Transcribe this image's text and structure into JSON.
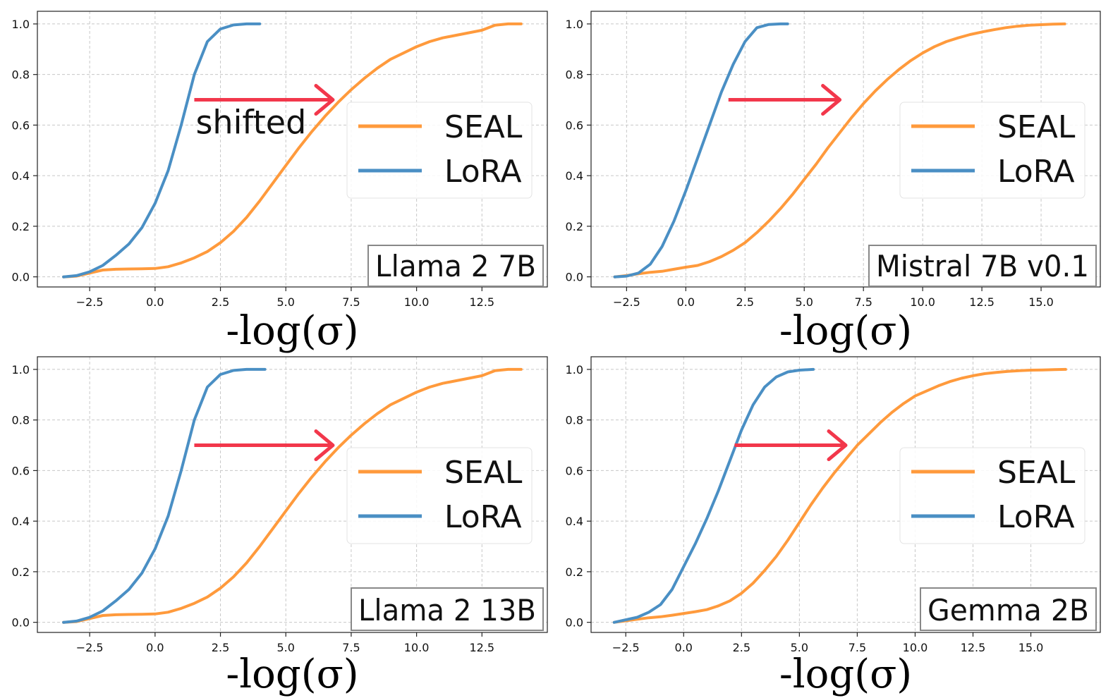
{
  "figure": {
    "colors": {
      "SEAL": "#ff9a3c",
      "LoRA": "#4a8fc4",
      "arrow": "#f2374b",
      "grid": "#c8c8c8"
    }
  },
  "chart_data": [
    {
      "type": "line",
      "model": "Llama 2 7B",
      "xlabel": "-log(σ)",
      "ylabel": "",
      "xlim": [
        -4.5,
        15.0
      ],
      "ylim": [
        -0.04,
        1.05
      ],
      "xticks": [
        -2.5,
        0.0,
        2.5,
        5.0,
        7.5,
        10.0,
        12.5
      ],
      "xtick_labels": [
        "−2.5",
        "0.0",
        "2.5",
        "5.0",
        "7.5",
        "10.0",
        "12.5"
      ],
      "yticks": [
        0.0,
        0.2,
        0.4,
        0.6,
        0.8,
        1.0
      ],
      "ytick_labels": [
        "0.0",
        "0.2",
        "0.4",
        "0.6",
        "0.8",
        "1.0"
      ],
      "grid": true,
      "legend": {
        "entries": [
          "SEAL",
          "LoRA"
        ],
        "position": "center-right"
      },
      "annotation": {
        "text": "shifted",
        "arrow_from": [
          1.5,
          0.7
        ],
        "arrow_to": [
          6.8,
          0.7
        ]
      },
      "series": [
        {
          "name": "SEAL",
          "x": [
            -3.5,
            -3.0,
            -2.5,
            -2.0,
            -1.5,
            -1.0,
            -0.5,
            0.0,
            0.5,
            1.0,
            1.5,
            2.0,
            2.5,
            3.0,
            3.5,
            4.0,
            4.5,
            5.0,
            5.5,
            6.0,
            6.5,
            7.0,
            7.5,
            8.0,
            8.5,
            9.0,
            9.5,
            10.0,
            10.5,
            11.0,
            11.5,
            12.0,
            12.5,
            13.0,
            13.5,
            14.0
          ],
          "y": [
            0.0,
            0.003,
            0.015,
            0.027,
            0.03,
            0.031,
            0.032,
            0.033,
            0.04,
            0.055,
            0.075,
            0.1,
            0.135,
            0.18,
            0.235,
            0.3,
            0.37,
            0.44,
            0.51,
            0.575,
            0.635,
            0.69,
            0.74,
            0.785,
            0.825,
            0.86,
            0.885,
            0.91,
            0.93,
            0.945,
            0.955,
            0.965,
            0.975,
            0.995,
            1.0,
            1.0
          ]
        },
        {
          "name": "LoRA",
          "x": [
            -3.5,
            -3.0,
            -2.5,
            -2.0,
            -1.5,
            -1.0,
            -0.5,
            0.0,
            0.5,
            1.0,
            1.5,
            2.0,
            2.5,
            3.0,
            3.5,
            4.0
          ],
          "y": [
            0.0,
            0.005,
            0.02,
            0.045,
            0.085,
            0.13,
            0.195,
            0.29,
            0.42,
            0.6,
            0.8,
            0.93,
            0.98,
            0.996,
            1.0,
            1.0
          ]
        }
      ]
    },
    {
      "type": "line",
      "model": "Mistral 7B v0.1",
      "xlabel": "-log(σ)",
      "ylabel": "",
      "xlim": [
        -4.0,
        17.5
      ],
      "ylim": [
        -0.04,
        1.05
      ],
      "xticks": [
        -2.5,
        0.0,
        2.5,
        5.0,
        7.5,
        10.0,
        12.5,
        15.0
      ],
      "xtick_labels": [
        "−2.5",
        "0.0",
        "2.5",
        "5.0",
        "7.5",
        "10.0",
        "12.5",
        "15.0"
      ],
      "yticks": [
        0.0,
        0.2,
        0.4,
        0.6,
        0.8,
        1.0
      ],
      "ytick_labels": [
        "0.0",
        "0.2",
        "0.4",
        "0.6",
        "0.8",
        "1.0"
      ],
      "grid": true,
      "legend": {
        "entries": [
          "SEAL",
          "LoRA"
        ],
        "position": "center-right"
      },
      "arrow": {
        "from": [
          1.8,
          0.7
        ],
        "to": [
          6.5,
          0.7
        ]
      },
      "series": [
        {
          "name": "SEAL",
          "x": [
            -3.0,
            -2.5,
            -2.0,
            -1.5,
            -1.0,
            -0.5,
            0.0,
            0.5,
            1.0,
            1.5,
            2.0,
            2.5,
            3.0,
            3.5,
            4.0,
            4.5,
            5.0,
            5.5,
            6.0,
            6.5,
            7.0,
            7.5,
            8.0,
            8.5,
            9.0,
            9.5,
            10.0,
            10.5,
            11.0,
            11.5,
            12.0,
            12.5,
            13.0,
            13.5,
            14.0,
            14.5,
            15.0,
            15.5,
            16.0
          ],
          "y": [
            0.0,
            0.005,
            0.012,
            0.018,
            0.022,
            0.03,
            0.038,
            0.045,
            0.06,
            0.08,
            0.105,
            0.135,
            0.175,
            0.22,
            0.27,
            0.325,
            0.385,
            0.445,
            0.51,
            0.57,
            0.63,
            0.685,
            0.735,
            0.78,
            0.82,
            0.855,
            0.885,
            0.91,
            0.93,
            0.945,
            0.958,
            0.968,
            0.977,
            0.985,
            0.991,
            0.995,
            0.997,
            0.999,
            1.0
          ]
        },
        {
          "name": "LoRA",
          "x": [
            -3.0,
            -2.5,
            -2.0,
            -1.5,
            -1.0,
            -0.5,
            0.0,
            0.5,
            1.0,
            1.5,
            2.0,
            2.5,
            3.0,
            3.5,
            4.0,
            4.3
          ],
          "y": [
            0.0,
            0.003,
            0.015,
            0.05,
            0.12,
            0.22,
            0.34,
            0.47,
            0.6,
            0.73,
            0.84,
            0.93,
            0.985,
            0.998,
            1.0,
            1.0
          ]
        }
      ]
    },
    {
      "type": "line",
      "model": "Llama 2 13B",
      "xlabel": "-log(σ)",
      "ylabel": "",
      "xlim": [
        -4.5,
        15.0
      ],
      "ylim": [
        -0.04,
        1.05
      ],
      "xticks": [
        -2.5,
        0.0,
        2.5,
        5.0,
        7.5,
        10.0,
        12.5
      ],
      "xtick_labels": [
        "−2.5",
        "0.0",
        "2.5",
        "5.0",
        "7.5",
        "10.0",
        "12.5"
      ],
      "yticks": [
        0.0,
        0.2,
        0.4,
        0.6,
        0.8,
        1.0
      ],
      "ytick_labels": [
        "0.0",
        "0.2",
        "0.4",
        "0.6",
        "0.8",
        "1.0"
      ],
      "grid": true,
      "legend": {
        "entries": [
          "SEAL",
          "LoRA"
        ],
        "position": "center-right"
      },
      "arrow": {
        "from": [
          1.5,
          0.7
        ],
        "to": [
          6.8,
          0.7
        ]
      },
      "series": [
        {
          "name": "SEAL",
          "x": [
            -3.5,
            -3.0,
            -2.5,
            -2.0,
            -1.5,
            -1.0,
            -0.5,
            0.0,
            0.5,
            1.0,
            1.5,
            2.0,
            2.5,
            3.0,
            3.5,
            4.0,
            4.5,
            5.0,
            5.5,
            6.0,
            6.5,
            7.0,
            7.5,
            8.0,
            8.5,
            9.0,
            9.5,
            10.0,
            10.5,
            11.0,
            11.5,
            12.0,
            12.5,
            13.0,
            13.5,
            14.0
          ],
          "y": [
            0.0,
            0.003,
            0.015,
            0.027,
            0.03,
            0.031,
            0.032,
            0.033,
            0.04,
            0.055,
            0.075,
            0.1,
            0.135,
            0.18,
            0.235,
            0.3,
            0.37,
            0.44,
            0.51,
            0.575,
            0.635,
            0.69,
            0.74,
            0.785,
            0.825,
            0.86,
            0.885,
            0.91,
            0.93,
            0.945,
            0.955,
            0.965,
            0.975,
            0.995,
            1.0,
            1.0
          ]
        },
        {
          "name": "LoRA",
          "x": [
            -3.5,
            -3.0,
            -2.5,
            -2.0,
            -1.5,
            -1.0,
            -0.5,
            0.0,
            0.5,
            1.0,
            1.5,
            2.0,
            2.5,
            3.0,
            3.5,
            4.2
          ],
          "y": [
            0.0,
            0.005,
            0.02,
            0.045,
            0.085,
            0.13,
            0.195,
            0.29,
            0.42,
            0.6,
            0.8,
            0.93,
            0.98,
            0.996,
            1.0,
            1.0
          ]
        }
      ]
    },
    {
      "type": "line",
      "model": "Gemma 2B",
      "xlabel": "-log(σ)",
      "ylabel": "",
      "xlim": [
        -4.0,
        18.0
      ],
      "ylim": [
        -0.04,
        1.05
      ],
      "xticks": [
        -2.5,
        0.0,
        2.5,
        5.0,
        7.5,
        10.0,
        12.5,
        15.0
      ],
      "xtick_labels": [
        "−2.5",
        "0.0",
        "2.5",
        "5.0",
        "7.5",
        "10.0",
        "12.5",
        "15.0"
      ],
      "yticks": [
        0.0,
        0.2,
        0.4,
        0.6,
        0.8,
        1.0
      ],
      "ytick_labels": [
        "0.0",
        "0.2",
        "0.4",
        "0.6",
        "0.8",
        "1.0"
      ],
      "grid": true,
      "legend": {
        "entries": [
          "SEAL",
          "LoRA"
        ],
        "position": "center-right"
      },
      "arrow": {
        "from": [
          2.2,
          0.7
        ],
        "to": [
          7.0,
          0.7
        ]
      },
      "series": [
        {
          "name": "SEAL",
          "x": [
            -3.0,
            -2.5,
            -2.0,
            -1.5,
            -1.0,
            -0.5,
            0.0,
            0.5,
            1.0,
            1.5,
            2.0,
            2.5,
            3.0,
            3.5,
            4.0,
            4.5,
            5.0,
            5.5,
            6.0,
            6.5,
            7.0,
            7.5,
            8.0,
            8.5,
            9.0,
            9.5,
            10.0,
            10.5,
            11.0,
            11.5,
            12.0,
            12.5,
            13.0,
            13.5,
            14.0,
            14.5,
            15.0,
            15.5,
            16.0,
            16.5
          ],
          "y": [
            0.0,
            0.006,
            0.012,
            0.018,
            0.022,
            0.028,
            0.035,
            0.042,
            0.05,
            0.065,
            0.085,
            0.115,
            0.155,
            0.205,
            0.26,
            0.325,
            0.395,
            0.465,
            0.53,
            0.59,
            0.645,
            0.7,
            0.745,
            0.79,
            0.83,
            0.865,
            0.895,
            0.915,
            0.935,
            0.952,
            0.965,
            0.975,
            0.983,
            0.988,
            0.992,
            0.995,
            0.997,
            0.998,
            0.999,
            1.0
          ]
        },
        {
          "name": "LoRA",
          "x": [
            -3.0,
            -2.5,
            -2.0,
            -1.5,
            -1.0,
            -0.5,
            0.0,
            0.5,
            1.0,
            1.5,
            2.0,
            2.5,
            3.0,
            3.5,
            4.0,
            4.5,
            5.0,
            5.6
          ],
          "y": [
            0.0,
            0.01,
            0.02,
            0.04,
            0.07,
            0.13,
            0.22,
            0.31,
            0.41,
            0.52,
            0.64,
            0.76,
            0.86,
            0.93,
            0.97,
            0.99,
            0.997,
            1.0
          ]
        }
      ]
    }
  ]
}
